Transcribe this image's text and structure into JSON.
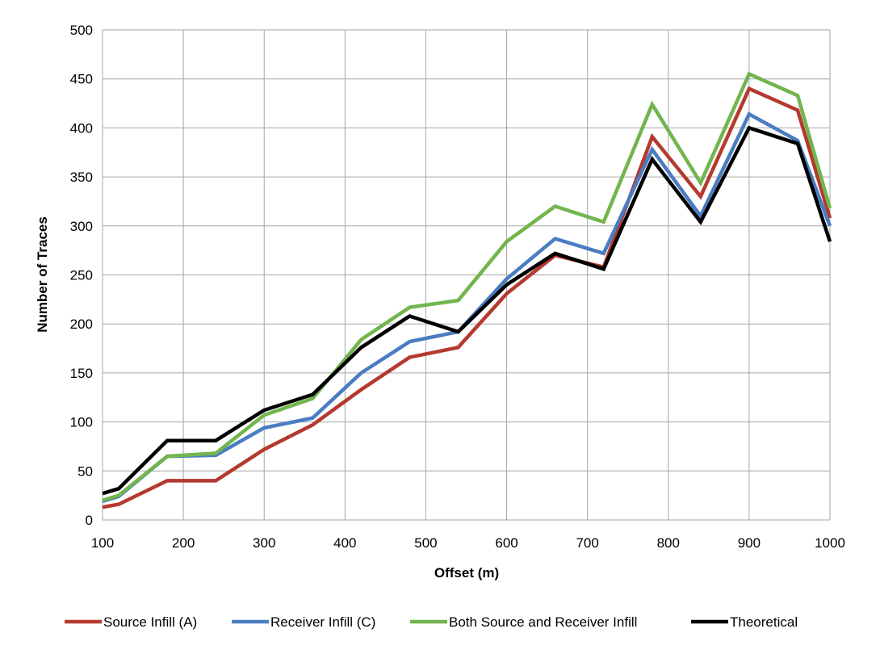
{
  "chart_data": {
    "type": "line",
    "xlabel": "Offset (m)",
    "ylabel": "Number of Traces",
    "xlim": [
      100,
      1000
    ],
    "ylim": [
      0,
      500
    ],
    "xticks": [
      "100",
      "200",
      "300",
      "400",
      "500",
      "600",
      "700",
      "800",
      "900",
      "1000"
    ],
    "yticks": [
      "0",
      "50",
      "100",
      "150",
      "200",
      "250",
      "300",
      "350",
      "400",
      "450",
      "500"
    ],
    "grid": true,
    "legend_position": "bottom",
    "x": [
      100,
      120,
      180,
      240,
      300,
      360,
      420,
      480,
      540,
      600,
      660,
      720,
      780,
      840,
      900,
      960,
      1000
    ],
    "series": [
      {
        "name": "Source Infill (A)",
        "color": "#b5392f",
        "values": [
          13,
          16,
          40,
          40,
          72,
          97,
          133,
          166,
          176,
          231,
          270,
          258,
          391,
          330,
          440,
          418,
          308
        ]
      },
      {
        "name": "Receiver Infill (C)",
        "color": "#4a7cc2",
        "values": [
          19,
          24,
          65,
          66,
          94,
          104,
          150,
          182,
          192,
          246,
          287,
          272,
          378,
          310,
          414,
          387,
          300
        ]
      },
      {
        "name": "Both Source and Receiver Infill",
        "color": "#72b54e",
        "values": [
          20,
          25,
          65,
          68,
          107,
          124,
          184,
          217,
          224,
          284,
          320,
          304,
          424,
          344,
          455,
          433,
          318
        ]
      },
      {
        "name": "Theoretical",
        "color": "#000000",
        "values": [
          27,
          32,
          81,
          81,
          112,
          128,
          176,
          208,
          192,
          240,
          272,
          256,
          368,
          304,
          400,
          384,
          284
        ]
      }
    ]
  }
}
